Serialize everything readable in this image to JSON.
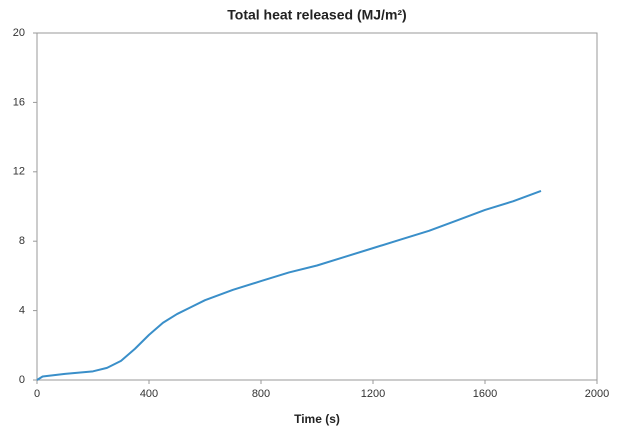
{
  "chart_data": {
    "type": "line",
    "title": "Total heat released (MJ/m²)",
    "x_label": "Time (s)",
    "x": [
      0,
      20,
      100,
      200,
      250,
      300,
      350,
      400,
      450,
      500,
      550,
      600,
      700,
      800,
      900,
      1000,
      1100,
      1200,
      1300,
      1400,
      1500,
      1600,
      1700,
      1800
    ],
    "series": [
      {
        "name": "Total heat released",
        "color": "#3a8fc9",
        "values": [
          0,
          0.2,
          0.35,
          0.5,
          0.7,
          1.1,
          1.8,
          2.6,
          3.3,
          3.8,
          4.2,
          4.6,
          5.2,
          5.7,
          6.2,
          6.6,
          7.1,
          7.6,
          8.1,
          8.6,
          9.2,
          9.8,
          10.3,
          10.9
        ]
      }
    ],
    "xlim": [
      0,
      2000
    ],
    "xticks": [
      0,
      400,
      800,
      1200,
      1600,
      2000
    ],
    "ylim": [
      0,
      20
    ],
    "yticks": [
      0,
      4,
      8,
      12,
      16,
      20
    ],
    "grid": false
  }
}
